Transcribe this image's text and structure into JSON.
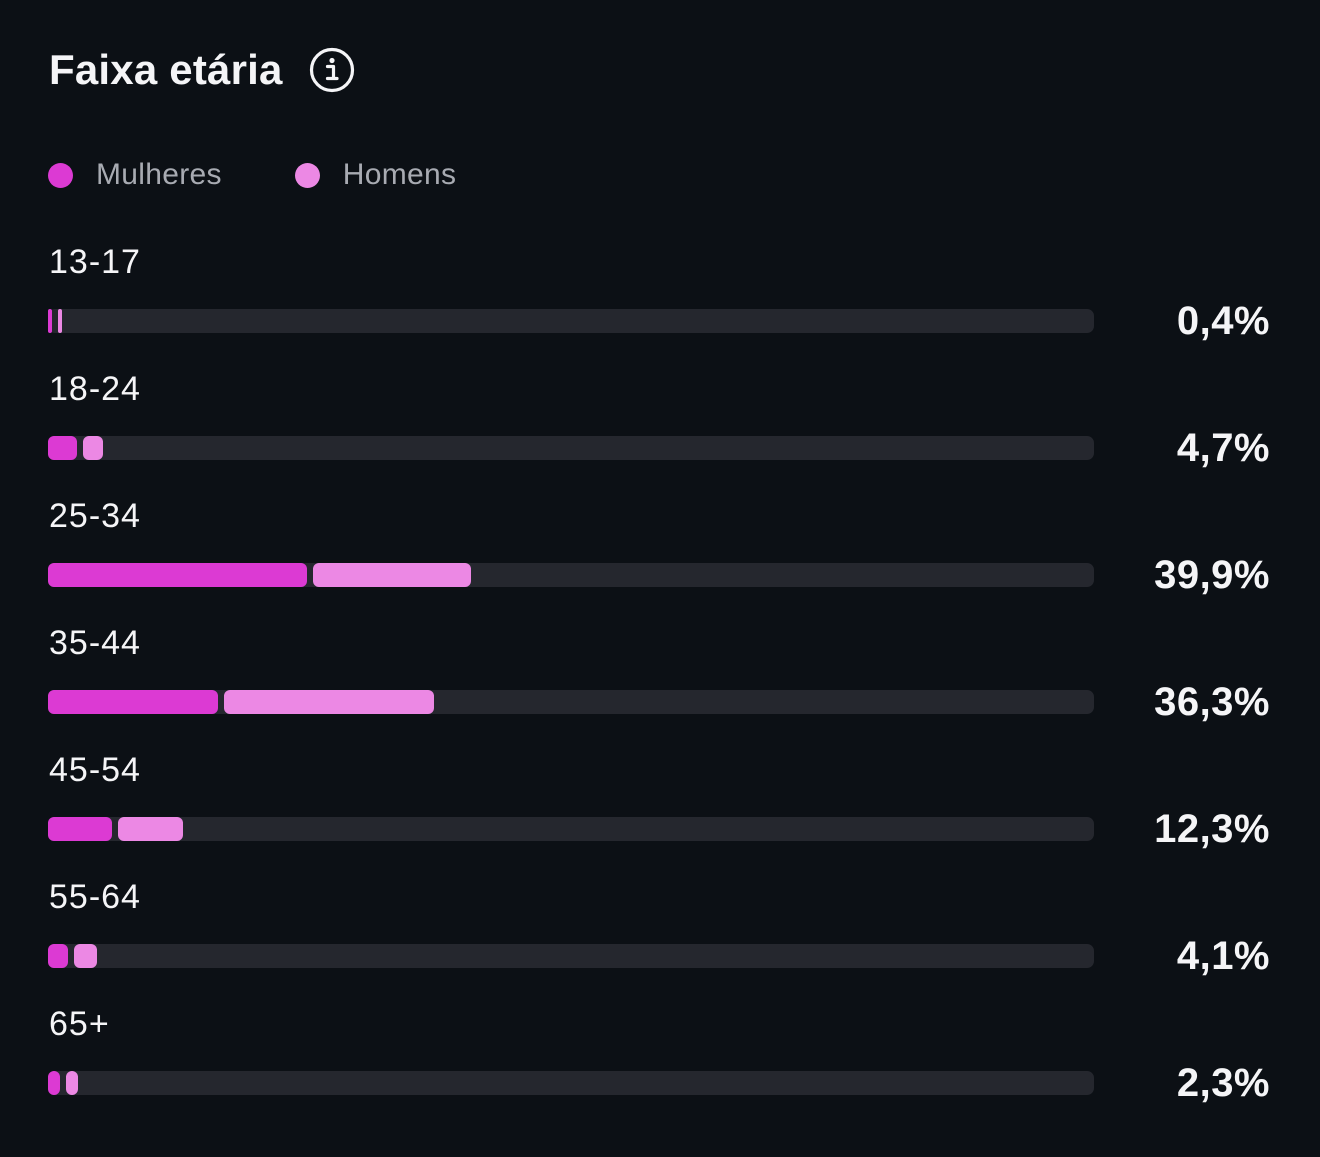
{
  "header": {
    "title": "Faixa etária",
    "info_icon": "info-icon"
  },
  "legend": [
    {
      "label": "Mulheres",
      "color": "#dc3ad3"
    },
    {
      "label": "Homens",
      "color": "#ec88e4"
    }
  ],
  "colors": {
    "background": "#0c1015",
    "track": "#25272e",
    "women": "#dc3ad3",
    "men": "#ec88e4"
  },
  "chart_data": {
    "type": "bar",
    "orientation": "horizontal",
    "stacked": true,
    "title": "Faixa etária",
    "categories": [
      "13-17",
      "18-24",
      "25-34",
      "35-44",
      "45-54",
      "55-64",
      "65+"
    ],
    "totals": [
      0.4,
      4.7,
      39.9,
      36.3,
      12.3,
      4.1,
      2.3
    ],
    "value_labels": [
      "0,4%",
      "4,7%",
      "39,9%",
      "36,3%",
      "12,3%",
      "4,1%",
      "2,3%"
    ],
    "series": [
      {
        "name": "Mulheres",
        "values": [
          0.2,
          2.8,
          24.8,
          16.3,
          6.1,
          1.9,
          1.1
        ]
      },
      {
        "name": "Homens",
        "values": [
          0.2,
          1.9,
          15.1,
          20.0,
          6.2,
          2.2,
          1.2
        ]
      }
    ],
    "xlim": [
      0,
      100
    ],
    "legend": "top-left"
  }
}
